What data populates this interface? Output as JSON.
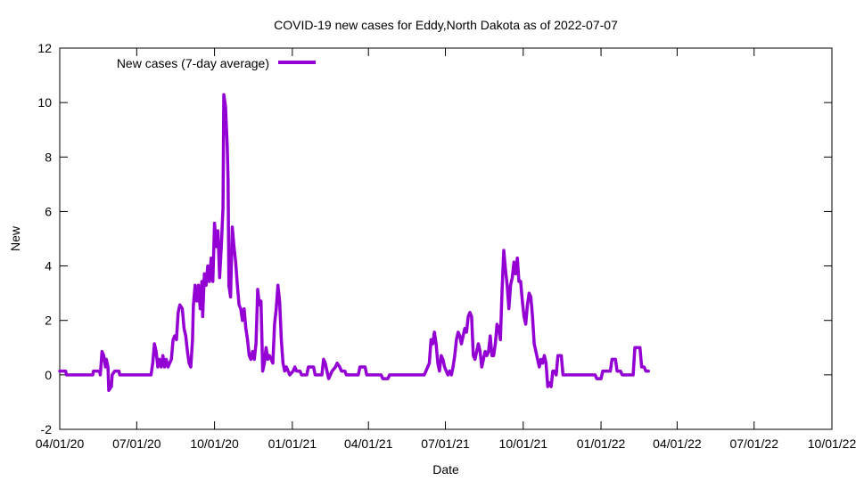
{
  "chart_data": {
    "type": "line",
    "title": "COVID-19 new cases for Eddy,North Dakota as of 2022-07-07",
    "xlabel": "Date",
    "ylabel": "New",
    "xlim": [
      "2020-04-01",
      "2022-10-01"
    ],
    "ylim": [
      -2,
      12
    ],
    "y_ticks": [
      -2,
      0,
      2,
      4,
      6,
      8,
      10,
      12
    ],
    "y_tick_labels": [
      "-2",
      "0",
      "2",
      "4",
      "6",
      "8",
      "10",
      "12"
    ],
    "x_ticks": [
      "2020-04-01",
      "2020-07-01",
      "2020-10-01",
      "2021-01-01",
      "2021-04-01",
      "2021-07-01",
      "2021-10-01",
      "2022-01-01",
      "2022-04-01",
      "2022-07-01",
      "2022-10-01"
    ],
    "x_tick_labels": [
      "04/01/20",
      "07/01/20",
      "10/01/20",
      "01/01/21",
      "04/01/21",
      "07/01/21",
      "10/01/21",
      "01/01/22",
      "04/01/22",
      "07/01/22",
      "10/01/22"
    ],
    "grid": false,
    "legend_position": "top-left",
    "series": [
      {
        "name": "New cases (7-day average)",
        "color": "#9400d3",
        "points": [
          [
            "2020-04-01",
            0.14
          ],
          [
            "2020-04-08",
            0.14
          ],
          [
            "2020-04-09",
            0
          ],
          [
            "2020-05-10",
            0
          ],
          [
            "2020-05-11",
            0.14
          ],
          [
            "2020-05-18",
            0.14
          ],
          [
            "2020-05-19",
            0
          ],
          [
            "2020-05-21",
            0.86
          ],
          [
            "2020-05-23",
            0.71
          ],
          [
            "2020-05-25",
            0.29
          ],
          [
            "2020-05-26",
            0.57
          ],
          [
            "2020-05-28",
            0.29
          ],
          [
            "2020-05-29",
            -0.57
          ],
          [
            "2020-06-01",
            -0.43
          ],
          [
            "2020-06-02",
            0
          ],
          [
            "2020-06-05",
            0.14
          ],
          [
            "2020-06-10",
            0.14
          ],
          [
            "2020-06-11",
            0
          ],
          [
            "2020-07-18",
            0
          ],
          [
            "2020-07-20",
            0.43
          ],
          [
            "2020-07-22",
            1.14
          ],
          [
            "2020-07-24",
            0.86
          ],
          [
            "2020-07-26",
            0.29
          ],
          [
            "2020-07-28",
            0.57
          ],
          [
            "2020-07-30",
            0.29
          ],
          [
            "2020-08-01",
            0.71
          ],
          [
            "2020-08-03",
            0.29
          ],
          [
            "2020-08-05",
            0.57
          ],
          [
            "2020-08-07",
            0.29
          ],
          [
            "2020-08-09",
            0.43
          ],
          [
            "2020-08-11",
            0.57
          ],
          [
            "2020-08-13",
            1.29
          ],
          [
            "2020-08-15",
            1.43
          ],
          [
            "2020-08-17",
            1.29
          ],
          [
            "2020-08-19",
            2.29
          ],
          [
            "2020-08-21",
            2.57
          ],
          [
            "2020-08-24",
            2.43
          ],
          [
            "2020-08-26",
            1.71
          ],
          [
            "2020-08-28",
            1.43
          ],
          [
            "2020-08-30",
            0.86
          ],
          [
            "2020-09-01",
            0.43
          ],
          [
            "2020-09-03",
            0.29
          ],
          [
            "2020-09-05",
            1.29
          ],
          [
            "2020-09-06",
            2.57
          ],
          [
            "2020-09-08",
            3.29
          ],
          [
            "2020-09-10",
            2.71
          ],
          [
            "2020-09-12",
            3.29
          ],
          [
            "2020-09-14",
            2.43
          ],
          [
            "2020-09-16",
            3.43
          ],
          [
            "2020-09-17",
            2.14
          ],
          [
            "2020-09-19",
            3.71
          ],
          [
            "2020-09-21",
            3.29
          ],
          [
            "2020-09-23",
            4.0
          ],
          [
            "2020-09-25",
            3.43
          ],
          [
            "2020-09-27",
            4.29
          ],
          [
            "2020-09-29",
            3.43
          ],
          [
            "2020-10-01",
            5.57
          ],
          [
            "2020-10-03",
            4.71
          ],
          [
            "2020-10-05",
            5.29
          ],
          [
            "2020-10-07",
            3.57
          ],
          [
            "2020-10-09",
            4.71
          ],
          [
            "2020-10-11",
            6.14
          ],
          [
            "2020-10-12",
            10.29
          ],
          [
            "2020-10-14",
            9.86
          ],
          [
            "2020-10-16",
            8.43
          ],
          [
            "2020-10-17",
            7.14
          ],
          [
            "2020-10-18",
            3.29
          ],
          [
            "2020-10-20",
            2.86
          ],
          [
            "2020-10-22",
            5.43
          ],
          [
            "2020-10-24",
            4.71
          ],
          [
            "2020-10-26",
            4.14
          ],
          [
            "2020-10-28",
            3.29
          ],
          [
            "2020-10-30",
            2.57
          ],
          [
            "2020-11-01",
            2.43
          ],
          [
            "2020-11-03",
            2.0
          ],
          [
            "2020-11-05",
            2.43
          ],
          [
            "2020-11-07",
            1.71
          ],
          [
            "2020-11-09",
            1.29
          ],
          [
            "2020-11-11",
            0.71
          ],
          [
            "2020-11-13",
            0.57
          ],
          [
            "2020-11-15",
            0.86
          ],
          [
            "2020-11-17",
            0.57
          ],
          [
            "2020-11-19",
            1.14
          ],
          [
            "2020-11-21",
            3.14
          ],
          [
            "2020-11-23",
            2.57
          ],
          [
            "2020-11-25",
            2.71
          ],
          [
            "2020-11-27",
            0.14
          ],
          [
            "2020-11-29",
            0.43
          ],
          [
            "2020-12-01",
            1.0
          ],
          [
            "2020-12-03",
            0.57
          ],
          [
            "2020-12-05",
            0.71
          ],
          [
            "2020-12-07",
            0.57
          ],
          [
            "2020-12-09",
            0.43
          ],
          [
            "2020-12-11",
            1.86
          ],
          [
            "2020-12-13",
            2.43
          ],
          [
            "2020-12-15",
            3.29
          ],
          [
            "2020-12-17",
            2.71
          ],
          [
            "2020-12-19",
            1.29
          ],
          [
            "2020-12-21",
            0.43
          ],
          [
            "2020-12-23",
            0.14
          ],
          [
            "2020-12-25",
            0.29
          ],
          [
            "2020-12-27",
            0.14
          ],
          [
            "2020-12-29",
            0
          ],
          [
            "2021-01-02",
            0.14
          ],
          [
            "2021-01-04",
            0.29
          ],
          [
            "2021-01-06",
            0.14
          ],
          [
            "2021-01-10",
            0.14
          ],
          [
            "2021-01-12",
            0
          ],
          [
            "2021-01-18",
            0
          ],
          [
            "2021-01-20",
            0.29
          ],
          [
            "2021-01-26",
            0.29
          ],
          [
            "2021-01-28",
            0
          ],
          [
            "2021-02-05",
            0
          ],
          [
            "2021-02-07",
            0.57
          ],
          [
            "2021-02-09",
            0.43
          ],
          [
            "2021-02-11",
            0.14
          ],
          [
            "2021-02-13",
            -0.14
          ],
          [
            "2021-02-15",
            0
          ],
          [
            "2021-02-17",
            0.14
          ],
          [
            "2021-02-21",
            0.29
          ],
          [
            "2021-02-23",
            0.43
          ],
          [
            "2021-02-26",
            0.29
          ],
          [
            "2021-02-28",
            0.14
          ],
          [
            "2021-03-04",
            0.14
          ],
          [
            "2021-03-06",
            0
          ],
          [
            "2021-03-20",
            0
          ],
          [
            "2021-03-22",
            0.29
          ],
          [
            "2021-03-28",
            0.29
          ],
          [
            "2021-03-30",
            0
          ],
          [
            "2021-04-16",
            0
          ],
          [
            "2021-04-18",
            -0.14
          ],
          [
            "2021-04-24",
            -0.14
          ],
          [
            "2021-04-26",
            0
          ],
          [
            "2021-06-06",
            0
          ],
          [
            "2021-06-08",
            0.14
          ],
          [
            "2021-06-12",
            0.43
          ],
          [
            "2021-06-14",
            1.29
          ],
          [
            "2021-06-16",
            1.14
          ],
          [
            "2021-06-18",
            1.57
          ],
          [
            "2021-06-20",
            1.14
          ],
          [
            "2021-06-22",
            0.43
          ],
          [
            "2021-06-24",
            0.14
          ],
          [
            "2021-06-26",
            0.71
          ],
          [
            "2021-06-28",
            0.57
          ],
          [
            "2021-06-30",
            0.29
          ],
          [
            "2021-07-02",
            0.14
          ],
          [
            "2021-07-04",
            0
          ],
          [
            "2021-07-06",
            0.14
          ],
          [
            "2021-07-08",
            0
          ],
          [
            "2021-07-10",
            0.29
          ],
          [
            "2021-07-12",
            0.71
          ],
          [
            "2021-07-14",
            1.29
          ],
          [
            "2021-07-16",
            1.57
          ],
          [
            "2021-07-18",
            1.43
          ],
          [
            "2021-07-20",
            1.14
          ],
          [
            "2021-07-22",
            1.43
          ],
          [
            "2021-07-24",
            1.71
          ],
          [
            "2021-07-26",
            1.57
          ],
          [
            "2021-07-28",
            2.14
          ],
          [
            "2021-07-30",
            2.29
          ],
          [
            "2021-08-01",
            2.14
          ],
          [
            "2021-08-03",
            0.71
          ],
          [
            "2021-08-05",
            0.57
          ],
          [
            "2021-08-07",
            0.86
          ],
          [
            "2021-08-09",
            1.14
          ],
          [
            "2021-08-11",
            0.86
          ],
          [
            "2021-08-13",
            0.29
          ],
          [
            "2021-08-15",
            0.57
          ],
          [
            "2021-08-17",
            0.86
          ],
          [
            "2021-08-19",
            0.71
          ],
          [
            "2021-08-21",
            0.86
          ],
          [
            "2021-08-23",
            1.43
          ],
          [
            "2021-08-25",
            0.71
          ],
          [
            "2021-08-27",
            0.71
          ],
          [
            "2021-08-29",
            1.14
          ],
          [
            "2021-08-31",
            1.86
          ],
          [
            "2021-09-02",
            1.71
          ],
          [
            "2021-09-04",
            1.29
          ],
          [
            "2021-09-06",
            3.14
          ],
          [
            "2021-09-08",
            4.57
          ],
          [
            "2021-09-10",
            3.86
          ],
          [
            "2021-09-12",
            3.29
          ],
          [
            "2021-09-14",
            2.43
          ],
          [
            "2021-09-16",
            3.29
          ],
          [
            "2021-09-18",
            3.57
          ],
          [
            "2021-09-20",
            4.14
          ],
          [
            "2021-09-22",
            3.71
          ],
          [
            "2021-09-24",
            4.29
          ],
          [
            "2021-09-26",
            3.43
          ],
          [
            "2021-09-28",
            3.43
          ],
          [
            "2021-09-30",
            2.71
          ],
          [
            "2021-10-02",
            2.14
          ],
          [
            "2021-10-04",
            1.86
          ],
          [
            "2021-10-06",
            2.57
          ],
          [
            "2021-10-08",
            3.0
          ],
          [
            "2021-10-10",
            2.86
          ],
          [
            "2021-10-12",
            2.14
          ],
          [
            "2021-10-14",
            1.14
          ],
          [
            "2021-10-16",
            0.86
          ],
          [
            "2021-10-18",
            0.57
          ],
          [
            "2021-10-20",
            0.29
          ],
          [
            "2021-10-22",
            0.57
          ],
          [
            "2021-10-24",
            0.43
          ],
          [
            "2021-10-26",
            0.71
          ],
          [
            "2021-10-28",
            0.43
          ],
          [
            "2021-10-30",
            -0.43
          ],
          [
            "2021-11-01",
            -0.29
          ],
          [
            "2021-11-03",
            -0.43
          ],
          [
            "2021-11-05",
            0.14
          ],
          [
            "2021-11-07",
            0.14
          ],
          [
            "2021-11-09",
            0
          ],
          [
            "2021-11-11",
            0.71
          ],
          [
            "2021-11-15",
            0.71
          ],
          [
            "2021-11-17",
            0
          ],
          [
            "2021-12-25",
            0
          ],
          [
            "2021-12-27",
            -0.14
          ],
          [
            "2022-01-01",
            -0.14
          ],
          [
            "2022-01-03",
            0.14
          ],
          [
            "2022-01-12",
            0.14
          ],
          [
            "2022-01-14",
            0.57
          ],
          [
            "2022-01-18",
            0.57
          ],
          [
            "2022-01-20",
            0.14
          ],
          [
            "2022-01-24",
            0.14
          ],
          [
            "2022-01-26",
            0
          ],
          [
            "2022-02-08",
            0
          ],
          [
            "2022-02-10",
            1.0
          ],
          [
            "2022-02-16",
            1.0
          ],
          [
            "2022-02-18",
            0.29
          ],
          [
            "2022-02-21",
            0.29
          ],
          [
            "2022-02-23",
            0.14
          ],
          [
            "2022-02-26",
            0.14
          ]
        ]
      }
    ]
  }
}
